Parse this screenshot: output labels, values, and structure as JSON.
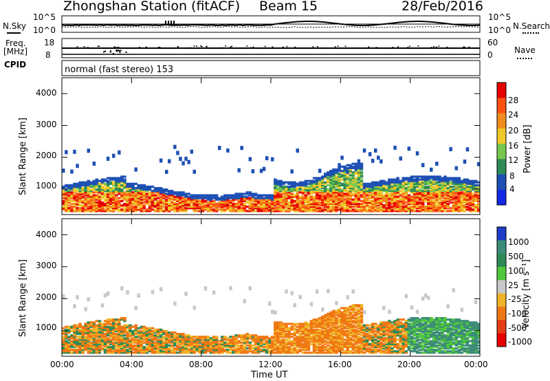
{
  "header": {
    "station": "Zhongshan Station (fitACF)",
    "beam": "Beam 15",
    "date": "28/Feb/2016"
  },
  "top_panel": {
    "left_label": "N.Sky",
    "right_label": "N.Search",
    "left_ticks": [
      "10^5",
      "10^0"
    ],
    "right_ticks": [
      "10^5",
      "10^0"
    ]
  },
  "freq_panel": {
    "label_line1": "Freq.",
    "label_line2": "[MHz]",
    "left_ticks": [
      "18",
      "8"
    ],
    "right_ticks": [
      "60",
      "0"
    ],
    "right_label": "Nave"
  },
  "cpid": {
    "label": "CPID",
    "mode": "normal (fast stereo) 153"
  },
  "power_panel": {
    "ylabel": "Slant Range [km]",
    "yticks": [
      "1000",
      "2000",
      "3000",
      "4000"
    ],
    "colorbar_label": "Power [dB]",
    "colorbar_ticks": [
      "4",
      "8",
      "12",
      "16",
      "20",
      "24",
      "28"
    ],
    "colors": [
      "#1428e6",
      "#1e50b4",
      "#2e8b57",
      "#78c850",
      "#f0c828",
      "#f08c1e",
      "#ff5010",
      "#e60000"
    ]
  },
  "velocity_panel": {
    "ylabel": "Slant Range [km]",
    "yticks": [
      "1000",
      "2000",
      "3000",
      "4000"
    ],
    "colorbar_label": "Velocity [m s⁻¹]",
    "colorbar_ticks": [
      "1000",
      "500",
      "100",
      "25",
      "-25",
      "-100",
      "-500",
      "-1000"
    ],
    "colors": [
      "#1e3cc8",
      "#3c8c78",
      "#2e8b57",
      "#50c83c",
      "#c8c8c8",
      "#f0b428",
      "#f07814",
      "#e63c14",
      "#e60000"
    ]
  },
  "xaxis": {
    "label": "Time UT",
    "ticks": [
      "00:00",
      "04:00",
      "08:00",
      "12:00",
      "16:00",
      "20:00",
      "00:00"
    ]
  }
}
